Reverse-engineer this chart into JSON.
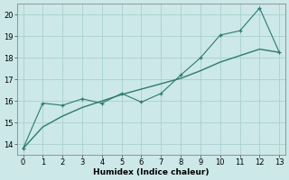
{
  "x_zigzag": [
    0,
    1,
    2,
    3,
    4,
    5,
    6,
    7,
    8,
    9,
    10,
    11,
    12,
    13
  ],
  "y_zigzag": [
    13.8,
    15.9,
    15.8,
    16.1,
    15.9,
    16.35,
    15.95,
    16.35,
    17.2,
    18.0,
    19.05,
    19.25,
    20.3,
    18.25
  ],
  "x_smooth": [
    0,
    1,
    2,
    3,
    4,
    5,
    6,
    7,
    8,
    9,
    10,
    11,
    12,
    13
  ],
  "y_smooth": [
    13.8,
    14.8,
    15.3,
    15.7,
    16.0,
    16.3,
    16.55,
    16.8,
    17.05,
    17.4,
    17.8,
    18.1,
    18.4,
    18.25
  ],
  "color": "#2d7a6e",
  "bg_color": "#cce8e8",
  "grid_color": "#aacfcf",
  "xlabel": "Humidex (Indice chaleur)",
  "xlim": [
    -0.3,
    13.3
  ],
  "ylim": [
    13.5,
    20.5
  ],
  "yticks": [
    14,
    15,
    16,
    17,
    18,
    19,
    20
  ],
  "xticks": [
    0,
    1,
    2,
    3,
    4,
    5,
    6,
    7,
    8,
    9,
    10,
    11,
    12,
    13
  ]
}
